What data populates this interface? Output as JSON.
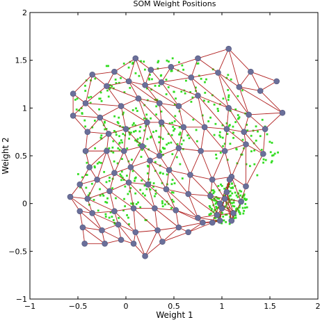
{
  "chart_data": {
    "type": "scatter",
    "title": "SOM Weight Positions",
    "xlabel": "Weight 1",
    "ylabel": "Weight 2",
    "xlim": [
      -1,
      2
    ],
    "ylim": [
      -1,
      2
    ],
    "xticks": [
      -1,
      -0.5,
      0,
      0.5,
      1,
      1.5,
      2
    ],
    "yticks": [
      -1,
      -0.5,
      0,
      0.5,
      1,
      1.5,
      2
    ],
    "xtick_labels": [
      "−1",
      "−0.5",
      "0",
      "0.5",
      "1",
      "1.5",
      "2"
    ],
    "ytick_labels": [
      "−1",
      "−0.5",
      "0",
      "0.5",
      "1",
      "1.5",
      "2"
    ],
    "grid": false,
    "colors": {
      "samples": "#33dd22",
      "neurons": "#6a6f9a",
      "links": "#b01e1e",
      "axes": "#000000"
    },
    "neurons": [
      [
        -0.55,
        1.15
      ],
      [
        -0.35,
        1.35
      ],
      [
        -0.12,
        1.38
      ],
      [
        0.1,
        1.52
      ],
      [
        0.26,
        1.4
      ],
      [
        0.47,
        1.43
      ],
      [
        0.75,
        1.52
      ],
      [
        1.07,
        1.62
      ],
      [
        1.3,
        1.38
      ],
      [
        1.57,
        1.28
      ],
      [
        -0.55,
        0.92
      ],
      [
        -0.42,
        1.05
      ],
      [
        -0.2,
        1.23
      ],
      [
        0.03,
        1.28
      ],
      [
        0.2,
        1.24
      ],
      [
        0.37,
        1.27
      ],
      [
        0.68,
        1.32
      ],
      [
        0.96,
        1.37
      ],
      [
        1.18,
        1.22
      ],
      [
        1.4,
        1.18
      ],
      [
        -0.4,
        0.75
      ],
      [
        -0.27,
        0.9
      ],
      [
        -0.05,
        1.02
      ],
      [
        0.13,
        1.1
      ],
      [
        0.35,
        1.05
      ],
      [
        0.55,
        1.02
      ],
      [
        0.75,
        1.13
      ],
      [
        1.07,
        1.0
      ],
      [
        1.28,
        0.93
      ],
      [
        1.63,
        0.95
      ],
      [
        -0.42,
        0.55
      ],
      [
        -0.18,
        0.73
      ],
      [
        0.0,
        0.78
      ],
      [
        0.22,
        0.85
      ],
      [
        0.37,
        0.85
      ],
      [
        0.6,
        0.8
      ],
      [
        0.82,
        0.8
      ],
      [
        1.05,
        0.78
      ],
      [
        1.23,
        0.75
      ],
      [
        1.45,
        0.78
      ],
      [
        -0.38,
        0.38
      ],
      [
        -0.2,
        0.55
      ],
      [
        -0.02,
        0.55
      ],
      [
        0.17,
        0.6
      ],
      [
        0.35,
        0.5
      ],
      [
        0.55,
        0.58
      ],
      [
        0.78,
        0.55
      ],
      [
        1.03,
        0.55
      ],
      [
        1.25,
        0.62
      ],
      [
        1.43,
        0.52
      ],
      [
        -0.48,
        0.2
      ],
      [
        -0.3,
        0.25
      ],
      [
        -0.12,
        0.32
      ],
      [
        0.05,
        0.38
      ],
      [
        0.25,
        0.45
      ],
      [
        0.45,
        0.35
      ],
      [
        0.67,
        0.3
      ],
      [
        0.9,
        0.25
      ],
      [
        1.1,
        0.28
      ],
      [
        1.25,
        0.18
      ],
      [
        -0.58,
        0.07
      ],
      [
        -0.4,
        0.05
      ],
      [
        -0.17,
        0.13
      ],
      [
        0.03,
        0.22
      ],
      [
        0.23,
        0.2
      ],
      [
        0.42,
        0.15
      ],
      [
        0.65,
        0.1
      ],
      [
        0.88,
        0.08
      ],
      [
        1.03,
        0.05
      ],
      [
        1.2,
        0.02
      ],
      [
        -0.48,
        -0.08
      ],
      [
        -0.35,
        -0.1
      ],
      [
        -0.12,
        -0.08
      ],
      [
        0.08,
        -0.05
      ],
      [
        0.3,
        -0.05
      ],
      [
        0.52,
        -0.07
      ],
      [
        0.75,
        -0.15
      ],
      [
        0.95,
        -0.12
      ],
      [
        1.12,
        -0.1
      ],
      [
        1.1,
        -0.18
      ],
      [
        -0.45,
        -0.25
      ],
      [
        -0.25,
        -0.28
      ],
      [
        -0.08,
        -0.22
      ],
      [
        0.1,
        -0.3
      ],
      [
        0.33,
        -0.28
      ],
      [
        0.55,
        -0.25
      ],
      [
        0.8,
        -0.2
      ],
      [
        0.98,
        -0.18
      ],
      [
        1.0,
        -0.05
      ],
      [
        1.05,
        0.12
      ],
      [
        -0.43,
        -0.42
      ],
      [
        -0.22,
        -0.42
      ],
      [
        -0.05,
        -0.38
      ],
      [
        0.08,
        -0.42
      ],
      [
        0.2,
        -0.55
      ],
      [
        0.38,
        -0.4
      ],
      [
        0.65,
        -0.3
      ],
      [
        0.9,
        -0.2
      ],
      [
        0.98,
        0.0
      ],
      [
        1.08,
        0.25
      ]
    ],
    "grid_rows": 10,
    "grid_cols": 10,
    "sample_clusters": [
      {
        "cx": 0.35,
        "cy": 1.05,
        "rx": 0.9,
        "ry": 0.5,
        "n": 220
      },
      {
        "cx": 0.05,
        "cy": 0.3,
        "rx": 0.55,
        "ry": 0.55,
        "n": 170
      },
      {
        "cx": 1.05,
        "cy": 0.0,
        "rx": 0.22,
        "ry": 0.22,
        "n": 140
      },
      {
        "cx": 1.25,
        "cy": 0.6,
        "rx": 0.35,
        "ry": 0.35,
        "n": 60
      }
    ]
  }
}
